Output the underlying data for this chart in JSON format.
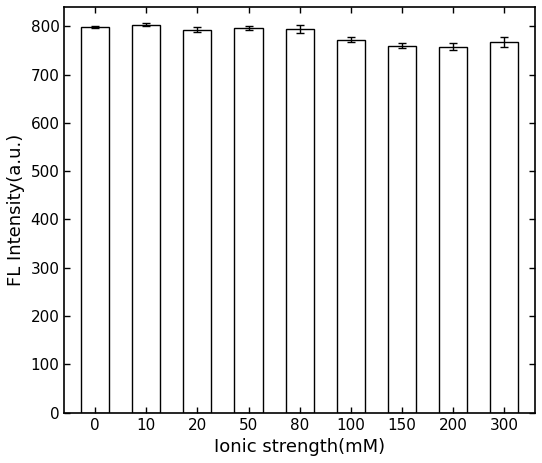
{
  "categories": [
    "0",
    "10",
    "20",
    "50",
    "80",
    "100",
    "150",
    "200",
    "300"
  ],
  "values": [
    798,
    803,
    793,
    796,
    795,
    772,
    760,
    758,
    768
  ],
  "errors": [
    2,
    3,
    5,
    4,
    8,
    5,
    5,
    8,
    10
  ],
  "bar_color": "#ffffff",
  "bar_edge_color": "#000000",
  "bar_width": 0.55,
  "xlabel": "Ionic strength(mM)",
  "ylabel": "FL Intensity(a.u.)",
  "ylim": [
    0,
    840
  ],
  "yticks": [
    0,
    100,
    200,
    300,
    400,
    500,
    600,
    700,
    800
  ],
  "xlabel_fontsize": 13,
  "ylabel_fontsize": 13,
  "tick_fontsize": 11,
  "background_color": "#ffffff",
  "figure_width": 5.42,
  "figure_height": 4.63,
  "dpi": 100
}
